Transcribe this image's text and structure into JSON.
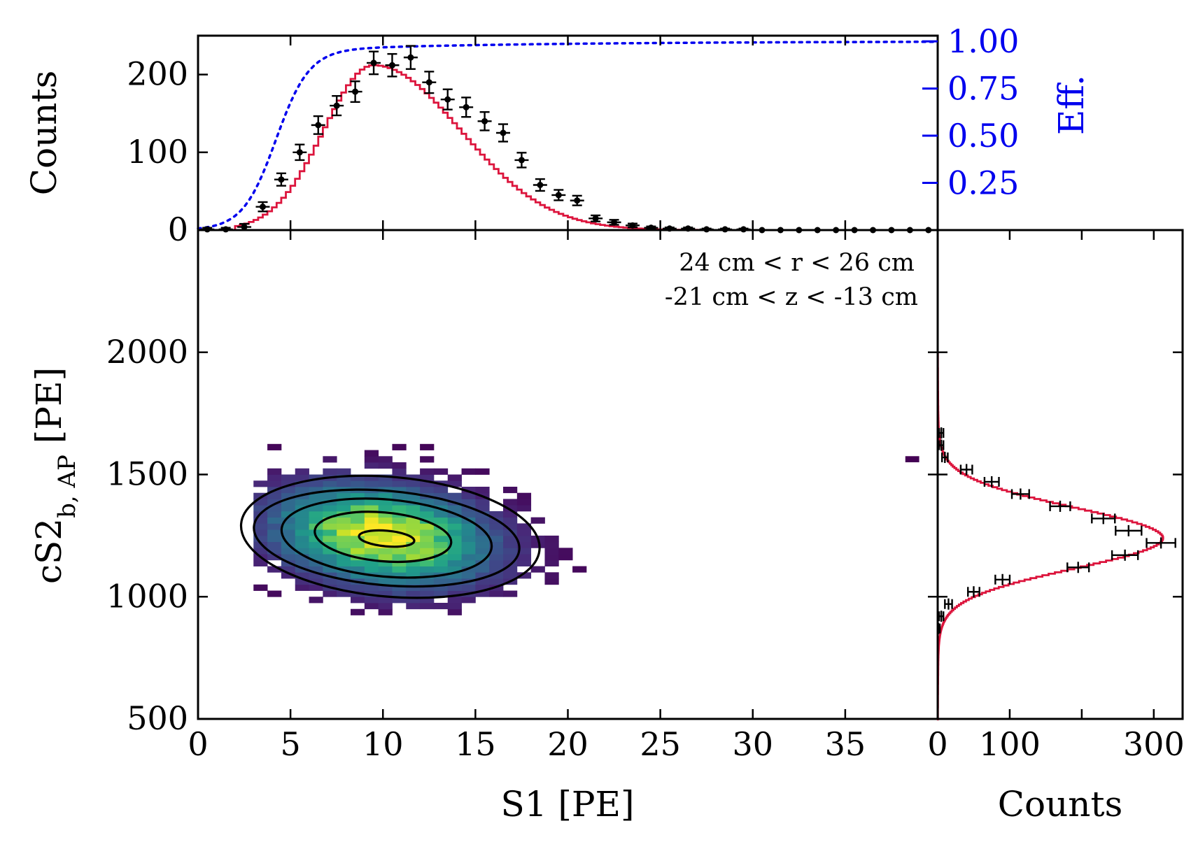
{
  "chart_data": [
    {
      "id": "top_histogram",
      "type": "histogram-with-fit",
      "ylabel": "Counts",
      "x_range": [
        0,
        40
      ],
      "ylim": [
        0,
        250
      ],
      "yticks": [
        0,
        100,
        200
      ],
      "bins_center": [
        0.5,
        1.5,
        2.5,
        3.5,
        4.5,
        5.5,
        6.5,
        7.5,
        8.5,
        9.5,
        10.5,
        11.5,
        12.5,
        13.5,
        14.5,
        15.5,
        16.5,
        17.5,
        18.5,
        19.5,
        20.5,
        21.5,
        22.5,
        23.5,
        24.5,
        25.5,
        26.5,
        27.5,
        28.5,
        29.5,
        30.5,
        31.5,
        32.5,
        33.5,
        34.5,
        35.5,
        36.5,
        37.5,
        38.5,
        39.5
      ],
      "counts": [
        1,
        1,
        4,
        30,
        65,
        100,
        135,
        160,
        178,
        215,
        212,
        222,
        190,
        168,
        158,
        140,
        125,
        90,
        58,
        45,
        38,
        15,
        10,
        6,
        3,
        2,
        2,
        1,
        1,
        1,
        0,
        0,
        0,
        0,
        0,
        0,
        0,
        0,
        0,
        0
      ],
      "errors": [
        2,
        2,
        4,
        6,
        8,
        10,
        11.5,
        12.5,
        13.3,
        14.6,
        14.5,
        14.9,
        13.8,
        13,
        12.5,
        11.8,
        11.2,
        9.5,
        7.6,
        6.7,
        6.2,
        3.9,
        3.2,
        2.4,
        1.7,
        1.4,
        1.4,
        1,
        1,
        1,
        0,
        0,
        0,
        0,
        0,
        0,
        0,
        0,
        0,
        0
      ],
      "fit": {
        "type": "skew-peak",
        "peak_x": 9.5,
        "peak_y": 212,
        "color": "#dc143c"
      },
      "efficiency": {
        "ylabel": "Eff.",
        "yticks": [
          "0.25",
          "0.50",
          "0.75",
          "1.00"
        ],
        "ylim": [
          0,
          1.03
        ],
        "color": "#0000ee",
        "style": "dotted"
      }
    },
    {
      "id": "main_2d_histogram",
      "type": "heatmap",
      "xlabel": "S1 [PE]",
      "ylabel_prefix": "cS2",
      "ylabel_subscript": "b, AP",
      "ylabel_suffix": " [PE]",
      "xlim": [
        0,
        40
      ],
      "ylim": [
        500,
        2500
      ],
      "xticks": [
        "0",
        "5",
        "10",
        "15",
        "20",
        "25",
        "30",
        "35"
      ],
      "yticks": [
        "500",
        "1000",
        "1500",
        "2000"
      ],
      "colormap": "viridis",
      "distribution": {
        "center_s1": 10,
        "center_cs2": 1250,
        "sigma_s1": 3.8,
        "sigma_cs2": 130
      },
      "contours": [
        {
          "cx": 10.2,
          "cy": 1238,
          "rx": 1.5,
          "ry": 32
        },
        {
          "cx": 10.0,
          "cy": 1245,
          "rx": 3.7,
          "ry": 100
        },
        {
          "cx": 10.2,
          "cy": 1240,
          "rx": 5.7,
          "ry": 158
        },
        {
          "cx": 10.2,
          "cy": 1240,
          "rx": 7.2,
          "ry": 193
        },
        {
          "cx": 10.4,
          "cy": 1245,
          "rx": 8.1,
          "ry": 245
        }
      ],
      "annotations": [
        "24 cm < r <  26 cm",
        "-21 cm < z < -13 cm"
      ]
    },
    {
      "id": "right_histogram",
      "type": "histogram-with-fit",
      "orientation": "horizontal",
      "xlabel": "Counts",
      "xlim": [
        0,
        340
      ],
      "xticks": [
        "0",
        "100",
        "300"
      ],
      "bins_cs2": [
        1670,
        1620,
        1570,
        1520,
        1470,
        1420,
        1370,
        1320,
        1270,
        1220,
        1170,
        1120,
        1070,
        1020,
        970,
        920,
        870
      ],
      "counts": [
        5,
        5,
        10,
        40,
        75,
        115,
        170,
        230,
        265,
        310,
        260,
        195,
        90,
        50,
        15,
        5,
        1
      ],
      "errors": [
        3,
        3,
        4,
        8,
        10,
        12,
        14,
        16,
        18,
        20,
        18,
        15,
        10,
        8,
        5,
        3,
        2
      ],
      "fit": {
        "type": "gaussian",
        "mu": 1240,
        "sigma": 125,
        "amplitude": 305,
        "color": "#dc143c"
      }
    }
  ]
}
